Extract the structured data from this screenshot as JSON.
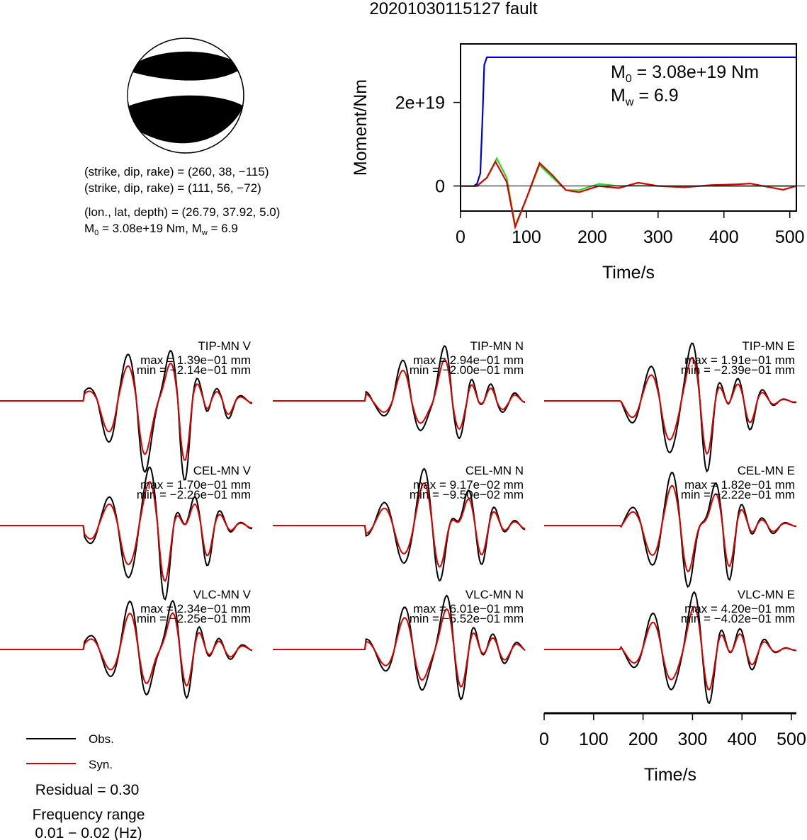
{
  "title": "20201030115127 fault",
  "beachball": {
    "lines": [
      "(strike, dip, rake) = (260, 38, −115)",
      "(strike, dip, rake) = (111, 56, −72)",
      "(lon., lat, depth) = (26.79, 37.92, 5.0)"
    ],
    "m0_line_left": "M",
    "m0_line_sub0": "0",
    "m0_line_mid": " = 3.08e+19 Nm, M",
    "m0_line_subw": "w",
    "m0_line_end": " = 6.9"
  },
  "colors": {
    "moment": "#0000cc",
    "green": "#22dd22",
    "obs": "#000000",
    "syn": "#dd0000"
  },
  "chart_data": [
    {
      "type": "line",
      "name": "moment-rate",
      "xlabel": "Time/s",
      "ylabel": "Moment/Nm",
      "xlim": [
        0,
        510
      ],
      "ylim": [
        -6e+18,
        3.4e+19
      ],
      "xticks": [
        0,
        100,
        200,
        300,
        400,
        500
      ],
      "xticklabels": [
        "0",
        "100",
        "200",
        "300",
        "400",
        "500"
      ],
      "yticks": [
        0,
        2e+19
      ],
      "yticklabels": [
        "0",
        "2e+19"
      ],
      "annotation_m0": {
        "prefix": "M",
        "sub": "0",
        "text": " = 3.08e+19 Nm"
      },
      "annotation_mw": {
        "prefix": "M",
        "sub": "w",
        "text": " = 6.9"
      },
      "series": [
        {
          "color": "#0000cc",
          "x": [
            0,
            20,
            25,
            30,
            33,
            36,
            40,
            510
          ],
          "y": [
            0,
            0,
            5e+17,
            3e+18,
            1.5e+19,
            2.9e+19,
            3.08e+19,
            3.08e+19
          ]
        },
        {
          "color": "#22dd22",
          "x": [
            0,
            25,
            40,
            55,
            70,
            83,
            100,
            120,
            140,
            160,
            180,
            210,
            240,
            270,
            300,
            350,
            400,
            450,
            510
          ],
          "y": [
            0,
            0,
            2e+18,
            6.6e+18,
            2e+18,
            -9.5e+18,
            -3e+18,
            5e+18,
            2e+18,
            -1e+18,
            -1e+18,
            5e+17,
            0,
            1e+17,
            0,
            0,
            0,
            0,
            0
          ]
        },
        {
          "color": "#dd0000",
          "x": [
            0,
            25,
            40,
            53,
            70,
            83,
            100,
            120,
            140,
            160,
            180,
            210,
            240,
            270,
            300,
            340,
            380,
            420,
            440,
            470,
            490,
            510
          ],
          "y": [
            0,
            0,
            2e+18,
            5.8e+18,
            1e+18,
            -9.8e+18,
            -3e+18,
            5.5e+18,
            2.5e+18,
            -1e+18,
            -1.5e+18,
            0,
            -5e+17,
            8e+17,
            0,
            -3e+17,
            2e+17,
            4e+17,
            6e+17,
            -3e+17,
            -9e+17,
            0
          ]
        }
      ]
    },
    {
      "type": "line",
      "name": "waveforms",
      "xlabel": "Time/s",
      "xlim": [
        0,
        510
      ],
      "xticks": [
        0,
        100,
        200,
        300,
        400,
        500
      ],
      "xticklabels": [
        "0",
        "100",
        "200",
        "300",
        "400",
        "500"
      ],
      "legend": {
        "placement": "bottom-left",
        "entries": [
          "Obs.",
          "Syn."
        ]
      },
      "traces": [
        {
          "label": "TIP-MN V",
          "max": "max = 1.39e−01 mm",
          "min": "min = −2.14e−01 mm"
        },
        {
          "label": "TIP-MN N",
          "max": "max = 2.94e−01 mm",
          "min": "min = −2.00e−01 mm"
        },
        {
          "label": "TIP-MN E",
          "max": "max = 1.91e−01 mm",
          "min": "min = −2.39e−01 mm"
        },
        {
          "label": "CEL-MN V",
          "max": "max = 1.70e−01 mm",
          "min": "min = −2.26e−01 mm"
        },
        {
          "label": "CEL-MN N",
          "max": "max = 9.17e−02 mm",
          "min": "min = −9.50e−02 mm"
        },
        {
          "label": "CEL-MN E",
          "max": "max = 1.82e−01 mm",
          "min": "min = −2.22e−01 mm"
        },
        {
          "label": "VLC-MN V",
          "max": "max = 2.34e−01 mm",
          "min": "min = −2.25e−01 mm"
        },
        {
          "label": "VLC-MN N",
          "max": "max = 6.01e−01 mm",
          "min": "min = −5.52e−01 mm"
        },
        {
          "label": "VLC-MN E",
          "max": "max = 4.20e−01 mm",
          "min": "min = −4.02e−01 mm"
        }
      ]
    }
  ],
  "residual": "Residual = 0.30",
  "freq_label": "Frequency range",
  "freq_value": "0.01 − 0.02 (Hz)"
}
